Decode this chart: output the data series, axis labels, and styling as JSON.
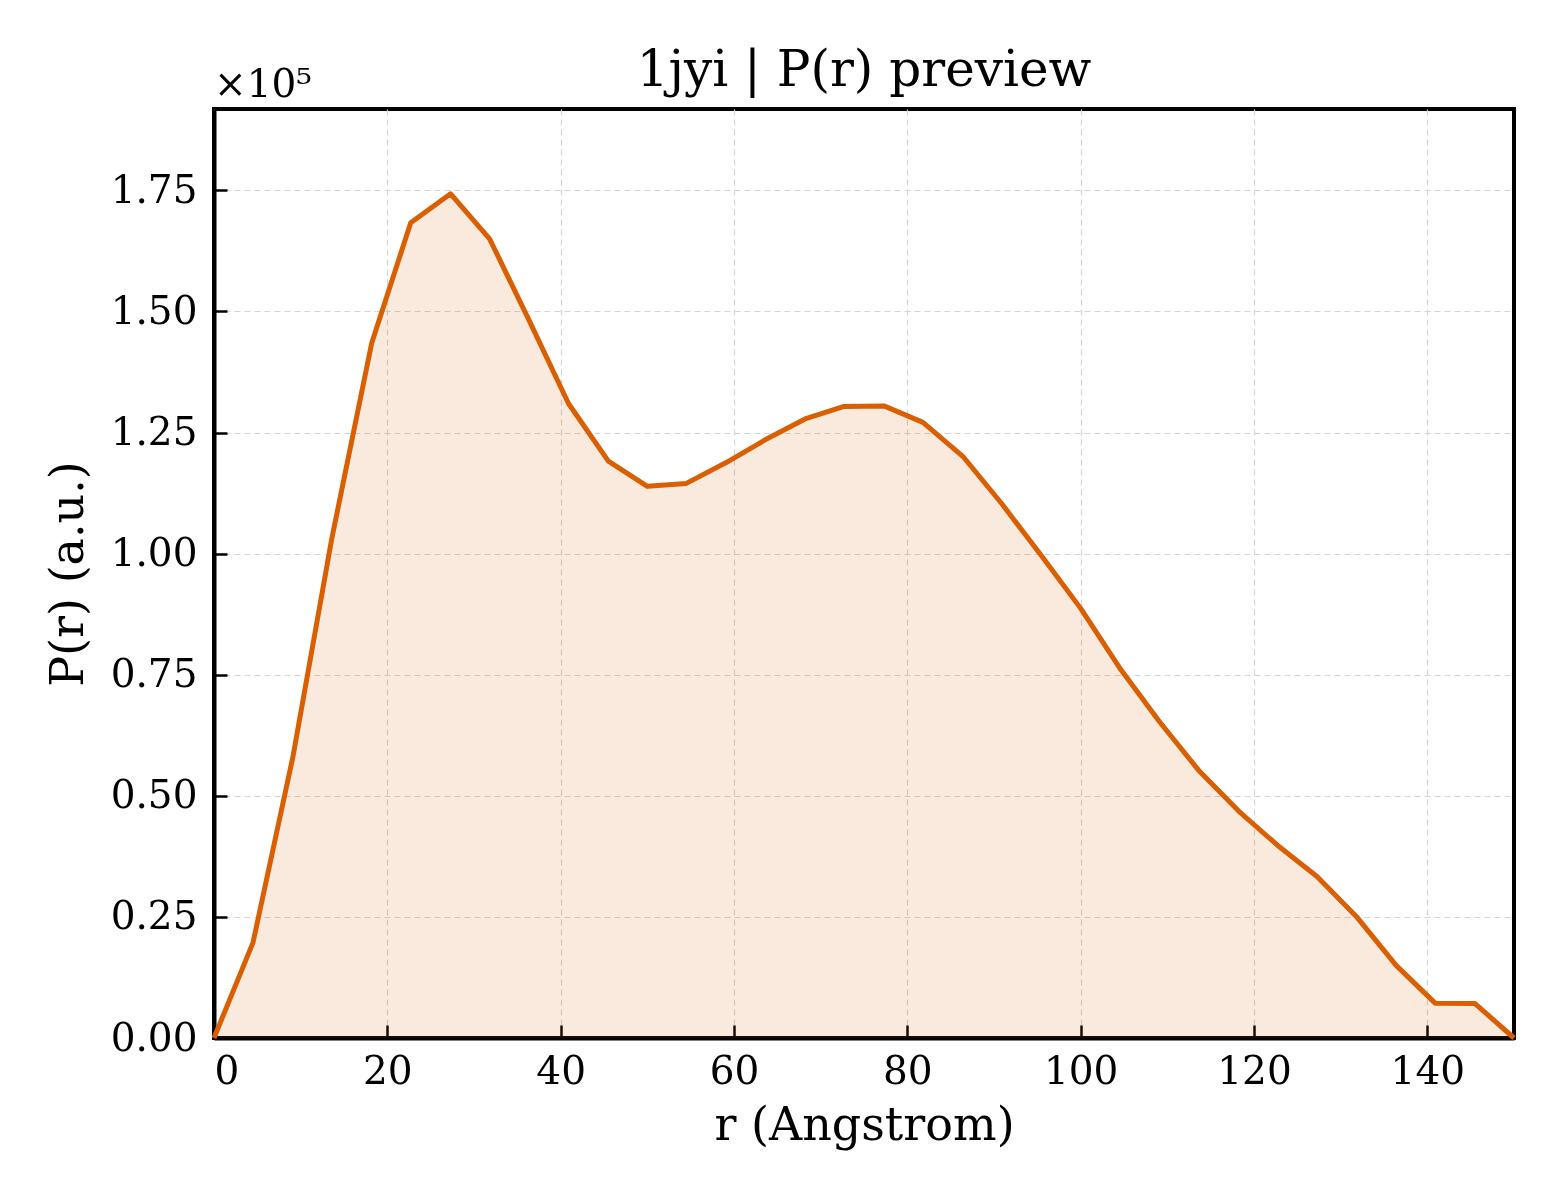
{
  "chart_data": {
    "type": "area",
    "title": "1jyi | P(r) preview",
    "xlabel": "r (Angstrom)",
    "ylabel": "P(r) (a.u.)",
    "annotations": [
      "×10⁵"
    ],
    "x": [
      0,
      4.5,
      9.1,
      13.6,
      18.2,
      22.7,
      27.3,
      31.8,
      36.4,
      40.9,
      45.5,
      50,
      54.5,
      59.1,
      63.6,
      68.2,
      72.7,
      77.3,
      81.8,
      86.4,
      90.9,
      95.5,
      100,
      104.5,
      109.1,
      113.6,
      118.2,
      122.7,
      127.3,
      131.8,
      136.4,
      140.9,
      145.5,
      150
    ],
    "series": [
      {
        "color": "#d95f02",
        "values": [
          0,
          0.197,
          0.58,
          1.032,
          1.435,
          1.683,
          1.743,
          1.65,
          1.48,
          1.31,
          1.191,
          1.139,
          1.145,
          1.188,
          1.235,
          1.278,
          1.304,
          1.305,
          1.271,
          1.201,
          1.103,
          0.995,
          0.887,
          0.764,
          0.653,
          0.553,
          0.469,
          0.398,
          0.333,
          0.251,
          0.15,
          0.072,
          0.071,
          0
        ]
      }
    ],
    "xlim": [
      0,
      150
    ],
    "ylim": [
      0,
      1.918
    ],
    "xticks": [
      0,
      20,
      40,
      60,
      80,
      100,
      120,
      140
    ],
    "yticks": [
      {
        "value": 0,
        "label": "0.00"
      },
      {
        "value": 0.25,
        "label": "0.25"
      },
      {
        "value": 0.5,
        "label": "0.50"
      },
      {
        "value": 0.75,
        "label": "0.75"
      },
      {
        "value": 1,
        "label": "1.00"
      },
      {
        "value": 1.25,
        "label": "1.25"
      },
      {
        "value": 1.5,
        "label": "1.50"
      },
      {
        "value": 1.75,
        "label": "1.75"
      }
    ],
    "grid": true
  }
}
